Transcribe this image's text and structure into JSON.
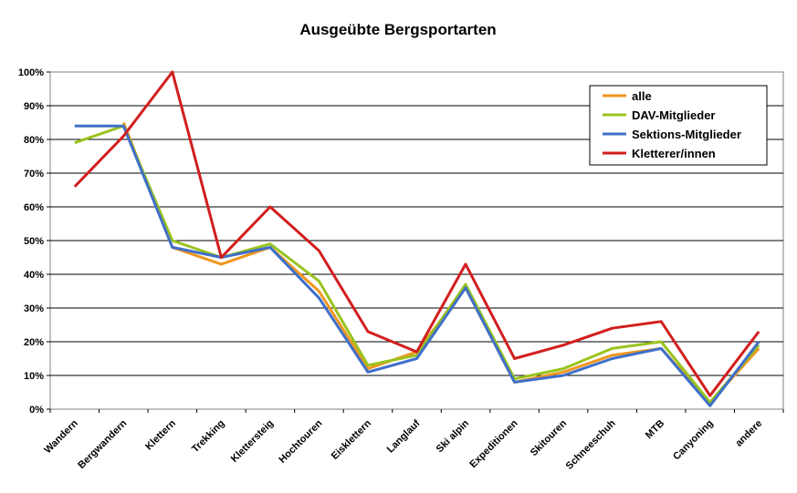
{
  "chart_data": {
    "type": "line",
    "title": "Ausgeübte Bergsportarten",
    "xlabel": "",
    "ylabel": "",
    "ylim": [
      0,
      100
    ],
    "y_ticks": [
      "0%",
      "10%",
      "20%",
      "30%",
      "40%",
      "50%",
      "60%",
      "70%",
      "80%",
      "90%",
      "100%"
    ],
    "grid": true,
    "legend_position": "top-right",
    "categories": [
      "Wandern",
      "Bergwandern",
      "Klettern",
      "Trekking",
      "Klettersteig",
      "Hochtouren",
      "Eisklettern",
      "Langlauf",
      "Ski alpin",
      "Expeditionen",
      "Skitouren",
      "Schneeschuh",
      "MTB",
      "Canyoning",
      "andere"
    ],
    "series": [
      {
        "name": "alle",
        "color": "#f0961e",
        "values": [
          null,
          85,
          48,
          43,
          48,
          35,
          12,
          17,
          36,
          8,
          11,
          16,
          18,
          2,
          18
        ]
      },
      {
        "name": "DAV-Mitglieder",
        "color": "#99c31e",
        "values": [
          79,
          84,
          50,
          45,
          49,
          38,
          13,
          16,
          37,
          9,
          12,
          18,
          20,
          2,
          19
        ]
      },
      {
        "name": "Sektions-Mitglieder",
        "color": "#3f6fc9",
        "values": [
          84,
          84,
          48,
          45,
          48,
          33,
          11,
          15,
          36,
          8,
          10,
          15,
          18,
          1,
          20
        ]
      },
      {
        "name": "Kletterer/innen",
        "color": "#d21e1e",
        "values": [
          66,
          81,
          100,
          45,
          60,
          47,
          23,
          17,
          43,
          15,
          19,
          24,
          26,
          4,
          23
        ]
      }
    ]
  }
}
